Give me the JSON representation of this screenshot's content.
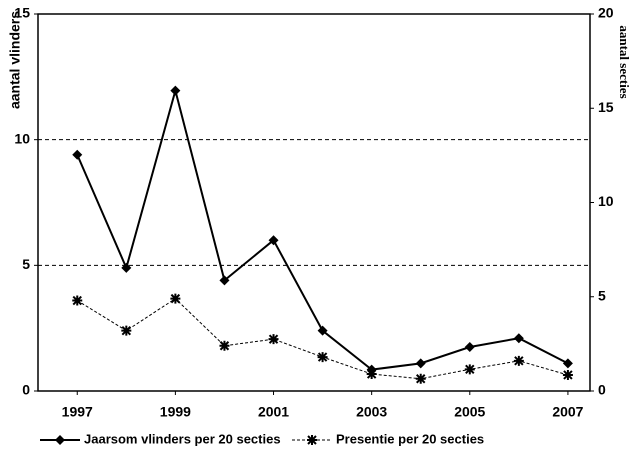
{
  "chart_data": {
    "type": "line",
    "ylabel": "aantal vlinders",
    "y2label": "aantal secties",
    "x": [
      1997,
      1998,
      1999,
      2000,
      2001,
      2002,
      2003,
      2004,
      2005,
      2006,
      2007
    ],
    "xlim": [
      1996.2,
      2007.45
    ],
    "xticks": [
      1997,
      1999,
      2001,
      2003,
      2005,
      2007
    ],
    "ylim": [
      0,
      15
    ],
    "yticks": [
      0,
      5,
      10,
      15
    ],
    "y2lim": [
      0,
      20
    ],
    "y2ticks": [
      0,
      5,
      10,
      15,
      20
    ],
    "grid": true,
    "series": [
      {
        "name": "Jaarsom vlinders per 20 secties",
        "color": "#000000",
        "marker": "diamond",
        "line_style": "solid",
        "values": [
          9.4,
          4.9,
          11.95,
          4.4,
          6.0,
          2.4,
          0.85,
          1.1,
          1.75,
          2.1,
          1.1
        ]
      },
      {
        "name": "Presentie per 20 secties",
        "color": "#000000",
        "marker": "star",
        "line_style": "dashed",
        "axis": "y2",
        "values": [
          4.8,
          3.2,
          4.9,
          2.4,
          2.75,
          1.8,
          0.9,
          0.65,
          1.15,
          1.6,
          0.85
        ]
      }
    ]
  }
}
